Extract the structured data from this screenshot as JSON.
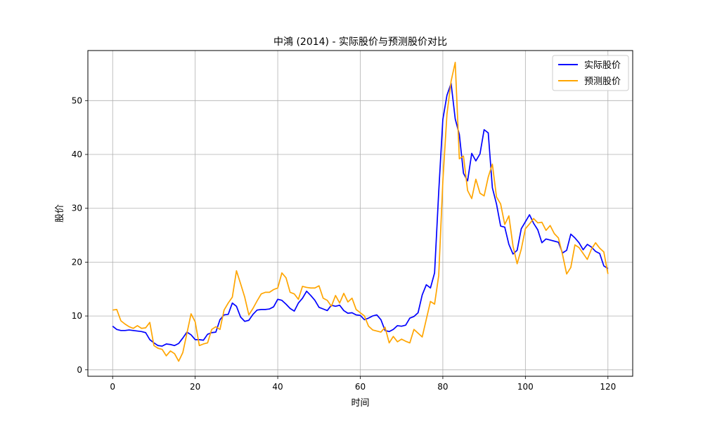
{
  "chart_data": {
    "type": "line",
    "title": "中鴻 (2014) - 实际股价与预测股价对比",
    "xlabel": "时间",
    "ylabel": "股价",
    "xlim": [
      -6,
      126
    ],
    "ylim": [
      -1.2,
      59.3
    ],
    "xticks": [
      0,
      20,
      40,
      60,
      80,
      100,
      120
    ],
    "yticks": [
      0,
      10,
      20,
      30,
      40,
      50
    ],
    "grid": true,
    "legend_position": "top-right",
    "series": [
      {
        "name": "实际股价",
        "color": "#0000ff",
        "values": [
          8.1,
          7.5,
          7.3,
          7.3,
          7.4,
          7.3,
          7.2,
          7.1,
          6.9,
          5.6,
          5.0,
          4.5,
          4.4,
          4.8,
          4.7,
          4.5,
          4.9,
          5.9,
          7.0,
          6.5,
          5.6,
          5.6,
          5.5,
          6.6,
          6.9,
          7.0,
          9.3,
          10.2,
          10.3,
          12.4,
          11.8,
          9.8,
          9.0,
          9.2,
          10.3,
          11.1,
          11.2,
          11.2,
          11.3,
          11.7,
          13.1,
          12.9,
          12.2,
          11.4,
          10.9,
          12.4,
          13.3,
          14.6,
          13.8,
          12.9,
          11.6,
          11.3,
          11.0,
          12.0,
          11.8,
          12.0,
          11.0,
          10.5,
          10.6,
          10.2,
          10.1,
          9.3,
          9.6,
          10.0,
          10.2,
          9.3,
          7.3,
          7.1,
          7.5,
          8.2,
          8.1,
          8.3,
          9.6,
          9.9,
          10.6,
          13.9,
          15.8,
          15.2,
          18.0,
          33.0,
          46.5,
          51.0,
          53.2,
          46.6,
          43.7,
          36.5,
          35.1,
          40.2,
          38.8,
          40.1,
          44.6,
          44.0,
          33.8,
          30.8,
          26.7,
          26.5,
          23.3,
          21.5,
          22.2,
          26.2,
          27.5,
          28.8,
          27.2,
          26.0,
          23.6,
          24.3,
          24.1,
          23.9,
          23.7,
          21.7,
          22.2,
          25.2,
          24.5,
          23.6,
          22.3,
          23.3,
          22.8,
          22.0,
          21.6,
          19.3,
          18.8
        ]
      },
      {
        "name": "预测股价",
        "color": "#ffa500",
        "values": [
          11.1,
          11.2,
          9.1,
          8.5,
          8.0,
          7.7,
          8.2,
          7.7,
          7.8,
          8.8,
          4.5,
          4.0,
          3.8,
          2.6,
          3.5,
          3.0,
          1.6,
          3.2,
          6.8,
          10.4,
          8.9,
          4.5,
          4.8,
          5.0,
          7.5,
          8.0,
          7.5,
          11.1,
          12.4,
          13.5,
          18.4,
          16.0,
          13.5,
          10.2,
          11.4,
          12.8,
          14.1,
          14.4,
          14.4,
          14.9,
          15.2,
          18.0,
          17.1,
          14.4,
          14.1,
          13.1,
          15.5,
          15.3,
          15.2,
          15.2,
          15.6,
          13.3,
          12.9,
          11.8,
          13.8,
          12.4,
          14.2,
          12.6,
          13.3,
          11.2,
          10.6,
          10.0,
          8.1,
          7.4,
          7.2,
          7.0,
          7.9,
          5.0,
          6.2,
          5.2,
          5.7,
          5.3,
          5.0,
          7.5,
          6.8,
          6.1,
          9.4,
          12.7,
          12.2,
          17.5,
          35.0,
          47.5,
          53.6,
          57.1,
          39.2,
          39.7,
          33.3,
          31.8,
          35.4,
          32.8,
          32.3,
          35.8,
          38.2,
          32.1,
          30.8,
          27.0,
          28.6,
          23.0,
          19.7,
          22.4,
          26.2,
          27.1,
          28.1,
          27.3,
          27.4,
          25.9,
          26.8,
          25.3,
          24.5,
          21.4,
          17.8,
          19.0,
          23.2,
          22.7,
          21.6,
          20.5,
          22.4,
          23.6,
          22.6,
          21.9,
          17.8
        ]
      }
    ]
  }
}
